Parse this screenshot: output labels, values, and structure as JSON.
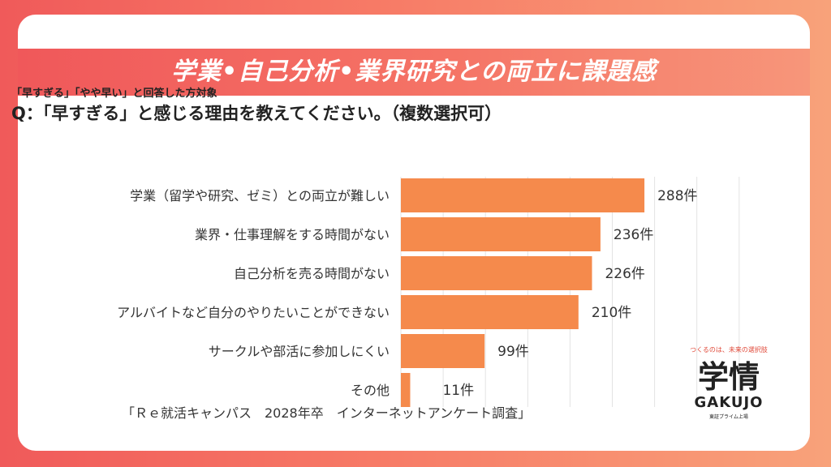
{
  "header": {
    "title": "学業•自己分析•業界研究との両立に課題感",
    "subject": "「早すぎる」「やや早い」と回答した方対象",
    "question": "Q：「早すぎる」と感じる理由を教えてください。（複数選択可）"
  },
  "chart_data": {
    "type": "bar",
    "orientation": "horizontal",
    "title": "",
    "xlabel": "",
    "ylabel": "",
    "categories": [
      "学業（留学や研究、ゼミ）との両立が難しい",
      "業界・仕事理解をする時間がない",
      "自己分析を売る時間がない",
      "アルバイトなど自分のやりたいことができない",
      "サークルや部活に参加しにくい",
      "その他"
    ],
    "values": [
      288,
      236,
      226,
      210,
      99,
      11
    ],
    "value_labels": [
      "288件",
      "236件",
      "226件",
      "210件",
      "99件",
      "11件"
    ],
    "xlim": [
      0,
      400
    ],
    "grid": true,
    "bar_color": "#f58a4c"
  },
  "footer": {
    "source": "「Ｒｅ就活キャンパス　2028年卒　インターネットアンケート調査」"
  },
  "logo": {
    "tagline": "つくるのは、未来の選択肢",
    "kanji": "学情",
    "name": "GAKUJO",
    "sub": "東証プライム上場"
  }
}
